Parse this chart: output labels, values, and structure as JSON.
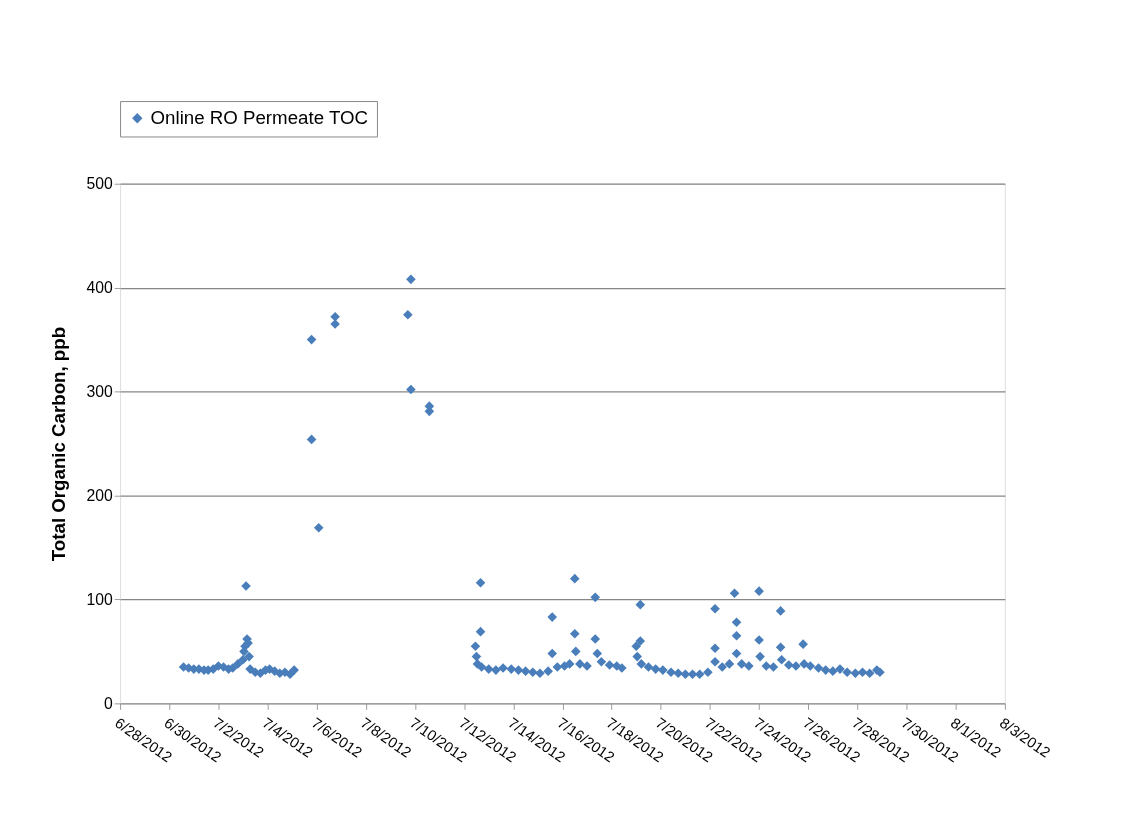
{
  "chart_data": {
    "type": "scatter",
    "ylabel": "Total Organic Carbon, ppb",
    "legend": "top",
    "marker": "diamond",
    "grid": "y",
    "xlim": [
      "2012-06-28",
      "2012-08-03"
    ],
    "xticks": [
      {
        "value": "2012-06-28",
        "label": "6/28/2012"
      },
      {
        "value": "2012-06-30",
        "label": "6/30/2012"
      },
      {
        "value": "2012-07-02",
        "label": "7/2/2012"
      },
      {
        "value": "2012-07-04",
        "label": "7/4/2012"
      },
      {
        "value": "2012-07-06",
        "label": "7/6/2012"
      },
      {
        "value": "2012-07-08",
        "label": "7/8/2012"
      },
      {
        "value": "2012-07-10",
        "label": "7/10/2012"
      },
      {
        "value": "2012-07-12",
        "label": "7/12/2012"
      },
      {
        "value": "2012-07-14",
        "label": "7/14/2012"
      },
      {
        "value": "2012-07-16",
        "label": "7/16/2012"
      },
      {
        "value": "2012-07-18",
        "label": "7/18/2012"
      },
      {
        "value": "2012-07-20",
        "label": "7/20/2012"
      },
      {
        "value": "2012-07-22",
        "label": "7/22/2012"
      },
      {
        "value": "2012-07-24",
        "label": "7/24/2012"
      },
      {
        "value": "2012-07-26",
        "label": "7/26/2012"
      },
      {
        "value": "2012-07-28",
        "label": "7/28/2012"
      },
      {
        "value": "2012-07-30",
        "label": "7/30/2012"
      },
      {
        "value": "2012-08-01",
        "label": "8/1/2012"
      },
      {
        "value": "2012-08-03",
        "label": "8/3/2012"
      }
    ],
    "ylim": [
      0,
      500
    ],
    "yticks": [
      0,
      100,
      200,
      300,
      400,
      500
    ],
    "series": [
      {
        "name": "Online RO Permeate TOC",
        "color": "#4a7ebb",
        "x": [
          "2012-06-30T14:00",
          "2012-06-30T19:00",
          "2012-07-01T00:00",
          "2012-07-01T05:00",
          "2012-07-01T10:00",
          "2012-07-01T14:00",
          "2012-07-01T19:00",
          "2012-07-02T00:00",
          "2012-07-02T05:00",
          "2012-07-02T10:00",
          "2012-07-02T14:00",
          "2012-07-02T19:00",
          "2012-07-03T00:00",
          "2012-07-03T01:00",
          "2012-07-03T02:00",
          "2012-07-03T04:00",
          "2012-07-03T05:00",
          "2012-07-03T06:00",
          "2012-07-03T07:00",
          "2012-07-03T12:00",
          "2012-07-03T17:00",
          "2012-07-03T22:00",
          "2012-07-04T02:00",
          "2012-07-04T07:00",
          "2012-07-04T12:00",
          "2012-07-04T17:00",
          "2012-07-04T22:00",
          "2012-07-05T02:00",
          "2012-07-03T03:00",
          "2012-07-05T19:00",
          "2012-07-05T19:00",
          "2012-07-06T02:00",
          "2012-07-06T18:00",
          "2012-07-06T18:00",
          "2012-07-09T20:00",
          "2012-07-09T17:00",
          "2012-07-09T20:00",
          "2012-07-10T14:00",
          "2012-07-10T14:00",
          "2012-07-12T11:00",
          "2012-07-12T12:00",
          "2012-07-12T13:00",
          "2012-07-12T16:00",
          "2012-07-12T16:00",
          "2012-07-12T17:00",
          "2012-07-13T00:00",
          "2012-07-13T07:00",
          "2012-07-13T14:00",
          "2012-07-13T22:00",
          "2012-07-14T05:00",
          "2012-07-14T12:00",
          "2012-07-14T19:00",
          "2012-07-15T02:00",
          "2012-07-15T10:00",
          "2012-07-15T14:00",
          "2012-07-15T14:00",
          "2012-07-15T19:00",
          "2012-07-16T02:00",
          "2012-07-16T07:00",
          "2012-07-16T12:00",
          "2012-07-16T12:00",
          "2012-07-16T13:00",
          "2012-07-16T17:00",
          "2012-07-17T00:00",
          "2012-07-17T08:00",
          "2012-07-17T08:00",
          "2012-07-17T10:00",
          "2012-07-17T14:00",
          "2012-07-17T22:00",
          "2012-07-18T05:00",
          "2012-07-18T10:00",
          "2012-07-19T00:00",
          "2012-07-19T01:00",
          "2012-07-19T04:00",
          "2012-07-19T04:00",
          "2012-07-19T05:00",
          "2012-07-19T12:00",
          "2012-07-19T19:00",
          "2012-07-20T02:00",
          "2012-07-20T10:00",
          "2012-07-20T17:00",
          "2012-07-21T00:00",
          "2012-07-21T07:00",
          "2012-07-21T14:00",
          "2012-07-21T22:00",
          "2012-07-22T05:00",
          "2012-07-22T05:00",
          "2012-07-22T05:00",
          "2012-07-22T12:00",
          "2012-07-22T19:00",
          "2012-07-23T02:00",
          "2012-07-23T00:00",
          "2012-07-23T02:00",
          "2012-07-23T02:00",
          "2012-07-23T07:00",
          "2012-07-23T14:00",
          "2012-07-24T00:00",
          "2012-07-24T00:00",
          "2012-07-24T01:00",
          "2012-07-24T07:00",
          "2012-07-24T14:00",
          "2012-07-24T21:00",
          "2012-07-24T21:00",
          "2012-07-24T22:00",
          "2012-07-25T05:00",
          "2012-07-25T12:00",
          "2012-07-25T19:00",
          "2012-07-25T20:00",
          "2012-07-26T02:00",
          "2012-07-26T10:00",
          "2012-07-26T17:00",
          "2012-07-27T00:00",
          "2012-07-27T07:00",
          "2012-07-27T14:00",
          "2012-07-27T22:00",
          "2012-07-28T05:00",
          "2012-07-28T12:00",
          "2012-07-28T19:00",
          "2012-07-28T22:00"
        ],
        "values": [
          35,
          34,
          33,
          33,
          32,
          32,
          33,
          36,
          35,
          33,
          34,
          38,
          42,
          50,
          55,
          62,
          58,
          45,
          33,
          30,
          29,
          32,
          33,
          31,
          29,
          30,
          28,
          32,
          113,
          350,
          254,
          169,
          372,
          365,
          408,
          374,
          302,
          286,
          281,
          55,
          45,
          38,
          116,
          69,
          35,
          33,
          32,
          34,
          33,
          32,
          31,
          30,
          29,
          31,
          83,
          48,
          35,
          36,
          38,
          120,
          67,
          50,
          38,
          36,
          102,
          62,
          48,
          40,
          37,
          36,
          34,
          55,
          45,
          95,
          60,
          38,
          35,
          33,
          32,
          30,
          29,
          28,
          28,
          28,
          30,
          91,
          53,
          40,
          35,
          38,
          78,
          106,
          65,
          48,
          38,
          36,
          108,
          61,
          45,
          36,
          35,
          89,
          54,
          42,
          37,
          36,
          57,
          38,
          36,
          34,
          32,
          31,
          33,
          30,
          29,
          30,
          29,
          32,
          30
        ]
      }
    ]
  }
}
